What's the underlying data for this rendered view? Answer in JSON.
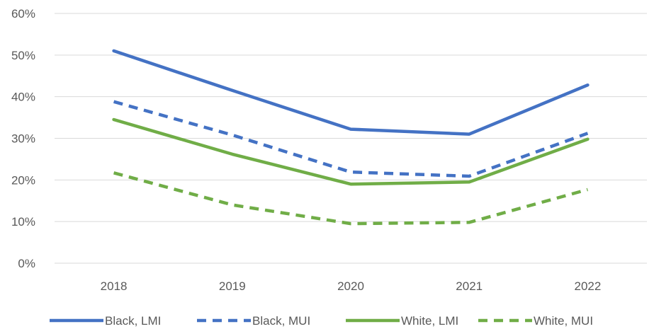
{
  "chart_data": {
    "type": "line",
    "title": "",
    "xlabel": "",
    "ylabel": "",
    "categories": [
      "2018",
      "2019",
      "2020",
      "2021",
      "2022"
    ],
    "ylim": [
      0,
      60
    ],
    "yticks": [
      "0%",
      "10%",
      "20%",
      "30%",
      "40%",
      "50%",
      "60%"
    ],
    "ytick_values": [
      0,
      10,
      20,
      30,
      40,
      50,
      60
    ],
    "grid": true,
    "legend_placement": "bottom",
    "series": [
      {
        "name": "Black, LMI",
        "values": [
          51,
          41.5,
          32.2,
          31,
          42.8
        ],
        "color": "#4472C4",
        "dashed": false
      },
      {
        "name": "Black, MUI",
        "values": [
          38.8,
          30.8,
          21.9,
          20.9,
          31.2
        ],
        "color": "#4472C4",
        "dashed": true
      },
      {
        "name": "White, LMI",
        "values": [
          34.5,
          26.2,
          19,
          19.5,
          29.8
        ],
        "color": "#70AD47",
        "dashed": false
      },
      {
        "name": "White, MUI",
        "values": [
          21.7,
          14,
          9.5,
          9.8,
          17.7
        ],
        "color": "#70AD47",
        "dashed": true
      }
    ]
  }
}
